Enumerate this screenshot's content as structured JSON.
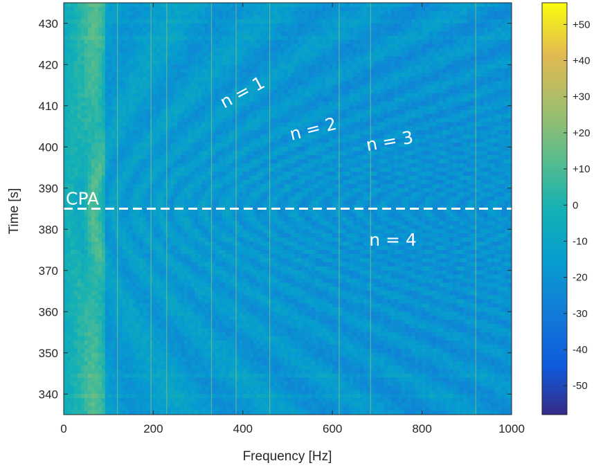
{
  "chart_data": {
    "type": "heatmap",
    "title": "",
    "xlabel": "Frequency [Hz]",
    "ylabel": "Time [s]",
    "xlim": [
      0,
      1000
    ],
    "ylim": [
      335,
      435
    ],
    "xticks": [
      0,
      200,
      400,
      600,
      800,
      1000
    ],
    "yticks": [
      340,
      350,
      360,
      370,
      380,
      390,
      400,
      410,
      420,
      430
    ],
    "colorbar": {
      "range": [
        -58,
        56
      ],
      "ticks": [
        "-50",
        "-40",
        "-30",
        "-20",
        "-10",
        "0",
        "+10",
        "+20",
        "+30",
        "+40",
        "+50"
      ],
      "tick_values": [
        -50,
        -40,
        -30,
        -20,
        -10,
        0,
        10,
        20,
        30,
        40,
        50
      ],
      "colormap": "parula"
    },
    "reference_line": {
      "label": "CPA",
      "time": 385,
      "style": "dashed",
      "color": "#ffffff"
    },
    "annotations": [
      {
        "text": "n = 1",
        "x": 405,
        "y": 412,
        "rotation": -28
      },
      {
        "text": "n = 2",
        "x": 560,
        "y": 403,
        "rotation": -14
      },
      {
        "text": "n = 3",
        "x": 730,
        "y": 400,
        "rotation": -10
      },
      {
        "text": "n = 4",
        "x": 735,
        "y": 376,
        "rotation": 0
      }
    ],
    "tonal_lines_hz": [
      120,
      195,
      230,
      330,
      385,
      460,
      615,
      685,
      920
    ],
    "grid": false
  }
}
